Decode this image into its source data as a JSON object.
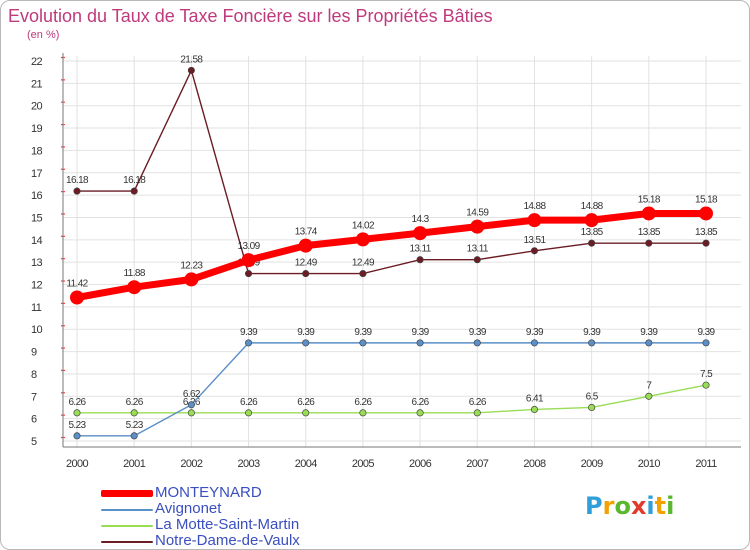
{
  "chart_data": {
    "type": "line",
    "title": "Evolution du Taux de Taxe Foncière sur les Propriétés Bâties",
    "unit_label": "(en %)",
    "x": [
      "2000",
      "2001",
      "2002",
      "2003",
      "2004",
      "2005",
      "2006",
      "2007",
      "2008",
      "2009",
      "2010",
      "2011"
    ],
    "ylim": [
      5,
      22
    ],
    "yticks": [
      5,
      6,
      7,
      8,
      9,
      10,
      11,
      12,
      13,
      14,
      15,
      16,
      17,
      18,
      19,
      20,
      21,
      22
    ],
    "grid": true,
    "series": [
      {
        "name": "Notre-Dame-de-Vaulx",
        "color": "#6b1c25",
        "values": [
          16.18,
          16.18,
          21.58,
          12.49,
          12.49,
          12.49,
          13.11,
          13.11,
          13.51,
          13.85,
          13.85,
          13.85
        ],
        "labels": [
          "16.18",
          "16.18",
          "21.58",
          "12.49",
          "12.49",
          "12.49",
          "13.11",
          "13.11",
          "13.51",
          "13.85",
          "13.85",
          "13.85"
        ]
      },
      {
        "name": "La Motte-Saint-Martin",
        "color": "#99dd55",
        "values": [
          6.26,
          6.26,
          6.26,
          6.26,
          6.26,
          6.26,
          6.26,
          6.26,
          6.41,
          6.5,
          7,
          7.5
        ],
        "labels": [
          "6.26",
          "6.26",
          "6.26",
          "6.26",
          "6.26",
          "6.26",
          "6.26",
          "6.26",
          "6.41",
          "6.5",
          "7",
          "7.5"
        ]
      },
      {
        "name": "Avignonet",
        "color": "#5b8fc7",
        "values": [
          5.23,
          5.23,
          6.62,
          9.39,
          9.39,
          9.39,
          9.39,
          9.39,
          9.39,
          9.39,
          9.39,
          9.39
        ],
        "labels": [
          "5.23",
          "5.23",
          "6.62",
          "9.39",
          "9.39",
          "9.39",
          "9.39",
          "9.39",
          "9.39",
          "9.39",
          "9.39",
          "9.39"
        ]
      },
      {
        "name": "MONTEYNARD",
        "color": "#ff0000",
        "values": [
          11.42,
          11.88,
          12.23,
          13.09,
          13.74,
          14.02,
          14.3,
          14.59,
          14.88,
          14.88,
          15.18,
          15.18
        ],
        "labels": [
          "11.42",
          "11.88",
          "12.23",
          "13.09",
          "13.74",
          "14.02",
          "14.3",
          "14.59",
          "14.88",
          "14.88",
          "15.18",
          "15.18"
        ]
      }
    ],
    "legend": [
      "MONTEYNARD",
      "Avignonet",
      "La Motte-Saint-Martin",
      "Notre-Dame-de-Vaulx"
    ],
    "legend_position": "bottom-left"
  },
  "logo": {
    "letters": [
      "P",
      "r",
      "o",
      "x",
      "i",
      "t",
      "i"
    ],
    "colors": [
      "#2e9fd8",
      "#f2a200",
      "#59b82d",
      "#e23b2b",
      "#2e9fd8",
      "#f2a200",
      "#59b82d"
    ]
  }
}
